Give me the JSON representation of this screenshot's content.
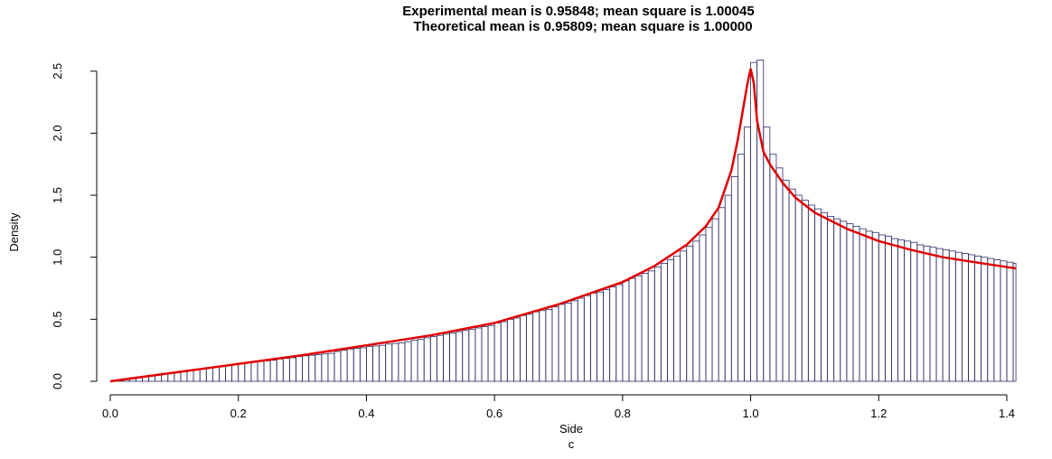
{
  "chart_data": {
    "type": "bar",
    "title_lines": [
      "Experimental mean is 0.95848; mean square is 1.00045",
      "Theoretical mean is 0.95809; mean square is 1.00000"
    ],
    "xlabel": "Side",
    "sublabel": "c",
    "ylabel": "Density",
    "xlim": [
      0,
      1.4142
    ],
    "ylim": [
      0,
      2.6
    ],
    "x_ticks": [
      0.0,
      0.2,
      0.4,
      0.6,
      0.8,
      1.0,
      1.2,
      1.4
    ],
    "x_tick_labels": [
      "0.0",
      "0.2",
      "0.4",
      "0.6",
      "0.8",
      "1.0",
      "1.2",
      "1.4"
    ],
    "y_ticks": [
      0.0,
      0.5,
      1.0,
      1.5,
      2.0,
      2.5
    ],
    "y_tick_labels": [
      "0.0",
      "0.5",
      "1.0",
      "1.5",
      "2.0",
      "2.5"
    ],
    "bin_width": 0.01,
    "histogram_values": [
      0.0,
      0.01,
      0.02,
      0.03,
      0.035,
      0.04,
      0.05,
      0.055,
      0.065,
      0.07,
      0.075,
      0.08,
      0.09,
      0.095,
      0.1,
      0.11,
      0.115,
      0.12,
      0.13,
      0.135,
      0.14,
      0.15,
      0.155,
      0.16,
      0.165,
      0.17,
      0.18,
      0.185,
      0.19,
      0.2,
      0.205,
      0.21,
      0.215,
      0.22,
      0.225,
      0.24,
      0.25,
      0.26,
      0.265,
      0.27,
      0.28,
      0.285,
      0.29,
      0.3,
      0.305,
      0.31,
      0.32,
      0.33,
      0.34,
      0.35,
      0.36,
      0.37,
      0.38,
      0.39,
      0.4,
      0.41,
      0.42,
      0.43,
      0.44,
      0.45,
      0.47,
      0.48,
      0.5,
      0.51,
      0.53,
      0.54,
      0.56,
      0.57,
      0.58,
      0.6,
      0.62,
      0.63,
      0.65,
      0.67,
      0.69,
      0.71,
      0.72,
      0.74,
      0.76,
      0.78,
      0.81,
      0.83,
      0.85,
      0.87,
      0.89,
      0.92,
      0.95,
      0.98,
      1.01,
      1.05,
      1.09,
      1.13,
      1.18,
      1.24,
      1.31,
      1.4,
      1.5,
      1.65,
      1.83,
      2.05,
      2.57,
      2.59,
      2.05,
      1.83,
      1.72,
      1.62,
      1.55,
      1.5,
      1.46,
      1.42,
      1.39,
      1.36,
      1.33,
      1.31,
      1.29,
      1.27,
      1.25,
      1.23,
      1.21,
      1.2,
      1.18,
      1.17,
      1.15,
      1.14,
      1.13,
      1.12,
      1.1,
      1.09,
      1.08,
      1.07,
      1.06,
      1.05,
      1.04,
      1.03,
      1.02,
      1.01,
      1.0,
      0.99,
      0.98,
      0.97,
      0.96,
      0.95
    ],
    "density_curve": {
      "x": [
        0.0,
        0.1,
        0.2,
        0.3,
        0.4,
        0.5,
        0.6,
        0.7,
        0.8,
        0.85,
        0.9,
        0.93,
        0.95,
        0.97,
        0.98,
        0.99,
        0.995,
        1.0,
        1.005,
        1.01,
        1.02,
        1.03,
        1.05,
        1.07,
        1.1,
        1.15,
        1.2,
        1.25,
        1.3,
        1.35,
        1.4142
      ],
      "y": [
        0.0,
        0.07,
        0.14,
        0.21,
        0.29,
        0.37,
        0.47,
        0.62,
        0.8,
        0.93,
        1.1,
        1.25,
        1.4,
        1.7,
        1.95,
        2.25,
        2.4,
        2.52,
        2.4,
        2.1,
        1.85,
        1.75,
        1.6,
        1.48,
        1.36,
        1.23,
        1.13,
        1.06,
        1.0,
        0.96,
        0.91
      ],
      "color": "#e00000"
    },
    "bar_edge_color": "#2a2a66"
  }
}
